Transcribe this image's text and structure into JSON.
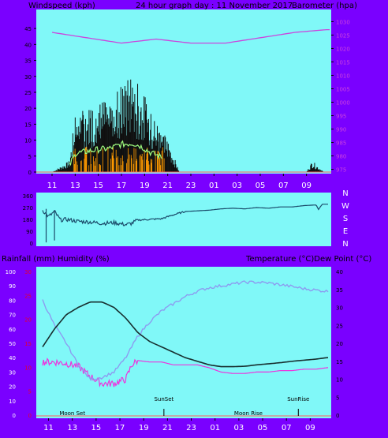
{
  "header": {
    "left": "Windspeed (kph)",
    "center": "24 hour graph day : 11 November 2017",
    "right": "Barometer (hpa)"
  },
  "colors": {
    "frame": "#7a00ff",
    "plot_bg": "#80f8f8",
    "wind": "#101010",
    "gust": "#a0ff80",
    "orange": "#ff9a00",
    "baro": "#cc44dd",
    "dir": "#1a4a6a",
    "temp": "#183030",
    "dew": "#8c9cf0",
    "hum": "#ee33dd"
  },
  "chart_data": [
    {
      "type": "line",
      "name": "wind-barometer",
      "x_ticks": [
        "11",
        "13",
        "15",
        "17",
        "19",
        "21",
        "23",
        "01",
        "03",
        "05",
        "07",
        "09"
      ],
      "left_axis": {
        "label": "Windspeed (kph)",
        "ticks": [
          0,
          5,
          10,
          15,
          20,
          25,
          30,
          35,
          40,
          45
        ],
        "ylim": [
          0,
          48
        ]
      },
      "right_axis": {
        "label": "Barometer (hpa)",
        "ticks": [
          975,
          980,
          985,
          990,
          995,
          1000,
          1005,
          1010,
          1015,
          1020,
          1025,
          1030
        ],
        "ylim": [
          974,
          1031
        ]
      },
      "series": [
        {
          "name": "Barometer (hpa)",
          "axis": "right",
          "hours": [
            0,
            3,
            6,
            9,
            12,
            15,
            18,
            21,
            23.7
          ],
          "values": [
            1026,
            1024,
            1022,
            1023.5,
            1022,
            1022,
            1024,
            1026,
            1027
          ]
        },
        {
          "name": "Windspeed (kph)",
          "axis": "left",
          "type": "bar-noise",
          "hours": [
            0,
            1,
            1.5,
            2,
            3,
            4,
            5,
            5.5,
            6,
            7,
            7.5,
            8,
            8.5,
            10,
            11,
            13,
            14,
            17,
            18,
            19.5,
            22,
            22.5,
            23.5
          ],
          "values": [
            0,
            2,
            3,
            15,
            17,
            19,
            20,
            22,
            24,
            25,
            23,
            20,
            16,
            9,
            0,
            0,
            0,
            0,
            0,
            0,
            0,
            3,
            0
          ]
        }
      ]
    },
    {
      "type": "line",
      "name": "wind-direction",
      "y_ticks": [
        0,
        90,
        180,
        270,
        360
      ],
      "right_labels": [
        "N",
        "W",
        "S",
        "E",
        "N"
      ],
      "series": [
        {
          "name": "Direction",
          "hours": [
            0,
            0.5,
            1,
            1.5,
            2,
            3,
            4,
            5,
            6,
            7,
            7.5,
            8,
            10,
            11,
            12,
            13,
            14,
            15,
            16,
            17,
            18,
            19,
            20,
            21,
            22,
            23,
            23.2,
            23.5,
            23.8
          ],
          "values": [
            250,
            200,
            240,
            175,
            180,
            165,
            160,
            150,
            155,
            140,
            150,
            175,
            185,
            215,
            240,
            245,
            250,
            260,
            265,
            260,
            270,
            265,
            275,
            275,
            285,
            290,
            255,
            295,
            295
          ]
        }
      ]
    },
    {
      "type": "line",
      "name": "temp-humidity",
      "header_left": "Rainfall (mm)  Humidity (%)",
      "header_right": "Temperature (°C)Dew Point (°C)",
      "left_axis": {
        "ticks": [
          0,
          10,
          20,
          30,
          40,
          50,
          60,
          70,
          80,
          90,
          100
        ],
        "ylim": [
          0,
          100
        ]
      },
      "rain_axis": {
        "ticks": [
          0,
          5,
          10,
          15,
          20,
          25,
          30
        ],
        "ylim": [
          0,
          30
        ]
      },
      "right_axis": {
        "ticks": [
          0,
          5,
          10,
          15,
          20,
          25,
          30,
          35,
          40
        ],
        "ylim": [
          0,
          40
        ]
      },
      "x_ticks": [
        "11",
        "13",
        "15",
        "17",
        "19",
        "21",
        "23",
        "01",
        "03",
        "05",
        "07",
        "09"
      ],
      "annotations": [
        "Moon Set",
        "SunSet",
        "Moon Rise",
        "SunRise"
      ],
      "series": [
        {
          "name": "Temperature (°C)",
          "axis": "right",
          "hours": [
            0,
            1,
            2,
            3,
            4,
            5,
            6,
            7,
            8,
            9,
            10,
            11,
            12,
            13,
            14,
            15,
            16,
            17,
            18,
            19,
            20,
            21,
            22,
            23,
            23.9
          ],
          "values": [
            19,
            24,
            28,
            30,
            31.5,
            31.5,
            30,
            27,
            23,
            20.5,
            19,
            17.5,
            16,
            15,
            14,
            13.5,
            13.5,
            13.6,
            14,
            14.3,
            14.6,
            15,
            15.3,
            15.6,
            16
          ]
        },
        {
          "name": "Dew Point (°C)",
          "axis": "right",
          "hours": [
            0,
            1,
            2,
            3,
            4,
            5,
            6,
            7,
            8,
            9,
            10,
            11,
            12,
            13,
            14,
            15,
            16,
            17,
            18,
            19,
            20,
            21,
            22,
            23,
            23.9
          ],
          "values": [
            32,
            25,
            20,
            14,
            10,
            10.5,
            12,
            16,
            22,
            26,
            29,
            31,
            33,
            34.5,
            35.5,
            36,
            36.5,
            37,
            37,
            36.8,
            36.3,
            35.8,
            35.2,
            34.8,
            34.5
          ]
        },
        {
          "name": "Humidity (%)",
          "axis": "left",
          "hours": [
            0,
            1,
            2,
            3,
            4,
            5,
            6,
            7,
            7.5,
            8,
            9,
            10,
            11,
            12,
            13,
            14,
            15,
            16,
            17,
            18,
            19,
            20,
            21,
            22,
            23,
            23.9
          ],
          "values": [
            37,
            37,
            36,
            34,
            27,
            22,
            22,
            25,
            35,
            38,
            37,
            37,
            35,
            35,
            35,
            33,
            30,
            29,
            29,
            30,
            30,
            31,
            31,
            32,
            32,
            33
          ]
        }
      ]
    }
  ]
}
